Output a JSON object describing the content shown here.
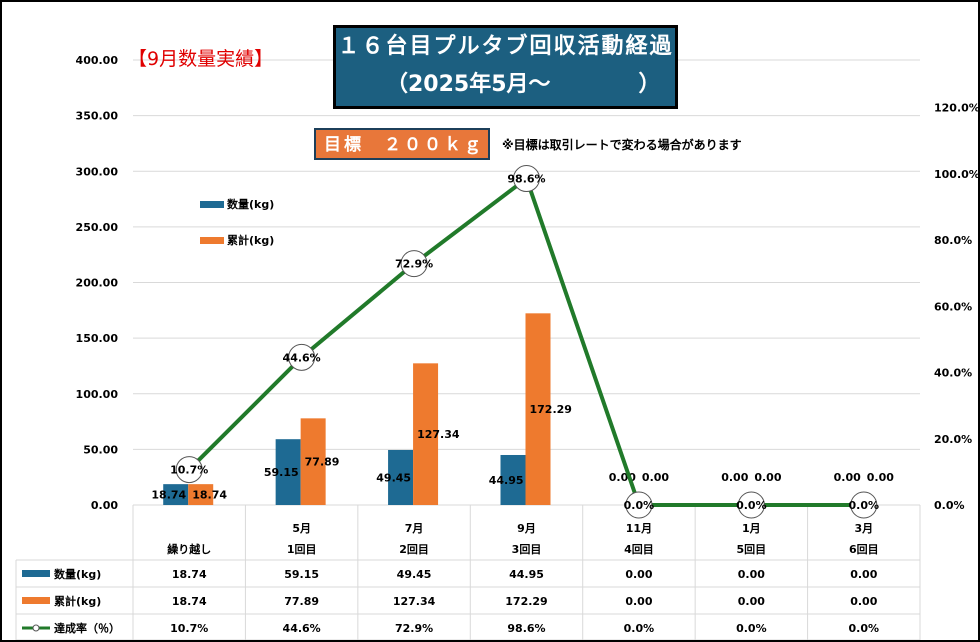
{
  "header": {
    "red_label": "【9月数量実績】",
    "title_line1": "１６台目プルタブ回収活動経過",
    "title_line2": "（2025年5月～　　　　）",
    "target": "目標　２００ｋｇ",
    "note": "※目標は取引レートで変わる場合があります"
  },
  "chart_data": {
    "type": "bar+line",
    "categories": [
      [
        "",
        "繰り越し"
      ],
      [
        "5月",
        "1回目"
      ],
      [
        "7月",
        "2回目"
      ],
      [
        "9月",
        "3回目"
      ],
      [
        "11月",
        "4回目"
      ],
      [
        "1月",
        "5回目"
      ],
      [
        "3月",
        "6回目"
      ]
    ],
    "series": [
      {
        "name": "数量(kg)",
        "type": "bar",
        "axis": "left",
        "color": "#1e6a93",
        "values": [
          18.74,
          59.15,
          49.45,
          44.95,
          0,
          0,
          0
        ],
        "labels": [
          "18.74",
          "59.15",
          "49.45",
          "44.95",
          "0.00",
          "0.00",
          "0.00"
        ]
      },
      {
        "name": "累計(kg)",
        "type": "bar",
        "axis": "left",
        "color": "#ee7a2e",
        "values": [
          18.74,
          77.89,
          127.34,
          172.29,
          0,
          0,
          0
        ],
        "labels": [
          "18.74",
          "77.89",
          "127.34",
          "172.29",
          "0.00",
          "0.00",
          "0.00"
        ]
      },
      {
        "name": "達成率（％）",
        "type": "line",
        "axis": "right",
        "color": "#217a2a",
        "values": [
          10.7,
          44.6,
          72.9,
          98.6,
          0,
          0,
          0
        ],
        "labels": [
          "10.7%",
          "44.6%",
          "72.9%",
          "98.6%",
          "0.0%",
          "0.0%",
          "0.0%"
        ]
      }
    ],
    "y_left": {
      "ticks": [
        "0.00",
        "50.00",
        "100.00",
        "150.00",
        "200.00",
        "250.00",
        "300.00",
        "350.00",
        "400.00"
      ],
      "range": [
        0,
        400
      ]
    },
    "y_right": {
      "ticks": [
        "0.0%",
        "20.0%",
        "40.0%",
        "60.0%",
        "80.0%",
        "100.0%",
        "120.0%"
      ],
      "range": [
        0,
        134.4
      ]
    },
    "legend": [
      "数量(kg)",
      "累計(kg)"
    ],
    "legend_position": "top-left",
    "table_row_labels": [
      "数量(kg)",
      "累計(kg)",
      "達成率（％）"
    ]
  }
}
